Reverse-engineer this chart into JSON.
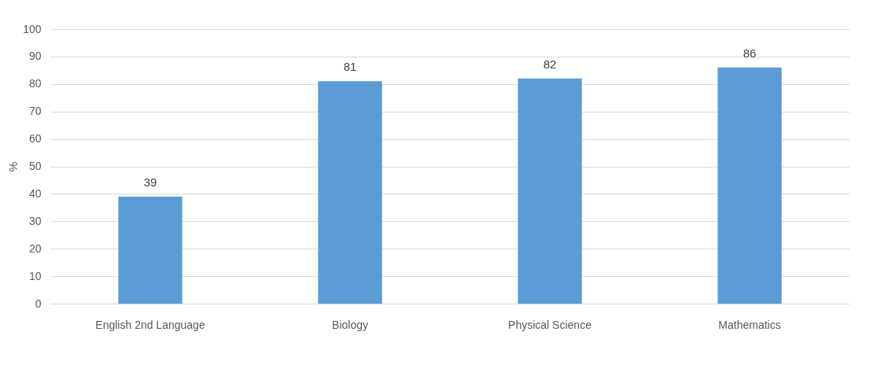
{
  "chart_data": {
    "type": "bar",
    "ylabel": "%",
    "categories": [
      "English 2nd Language",
      "Biology",
      "Physical Science",
      "Mathematics"
    ],
    "values": [
      39,
      81,
      82,
      86
    ],
    "color": "#5b9bd5",
    "ylim": [
      0,
      100
    ],
    "yticks": [
      0,
      10,
      20,
      30,
      40,
      50,
      60,
      70,
      80,
      90,
      100
    ],
    "grid": "y",
    "data_labels": true
  }
}
